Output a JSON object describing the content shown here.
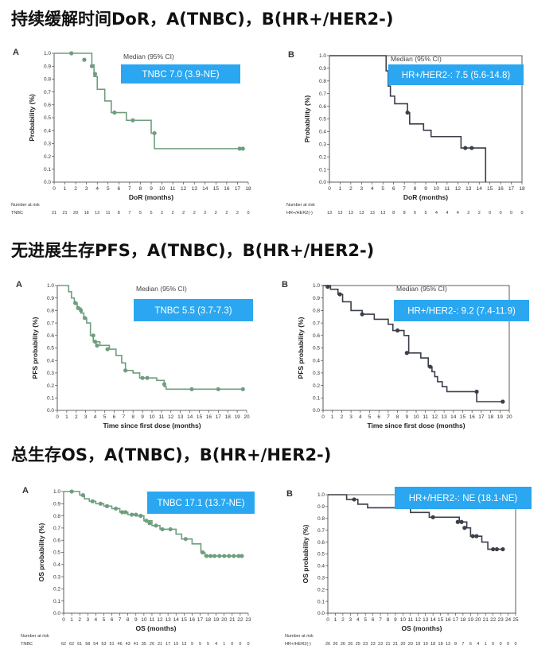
{
  "sections": {
    "dor_title": "持续缓解时间DoR，A(TNBC)，B(HR+/HER2-)",
    "pfs_title": "无进展生存PFS，A(TNBC)，B(HR+/HER2-)",
    "os_title": "总生存OS，A(TNBC)，B(HR+/HER2-)"
  },
  "colors": {
    "tnbc": "#6e9e7e",
    "hr": "#3a3f4a",
    "badge": "#2aa7f0"
  },
  "chart_data": [
    {
      "id": "dor_a",
      "type": "line",
      "panel": "A",
      "color_key": "tnbc",
      "median_label": "Median (95% CI)",
      "badge": "TNBC 7.0 (3.9-NE)",
      "ylabel": "Probability (%)",
      "xlabel": "DoR (months)",
      "xlim": [
        0,
        18
      ],
      "xstep": 1,
      "ylim": [
        0,
        1
      ],
      "steps": [
        [
          0,
          1.0
        ],
        [
          3.5,
          0.91
        ],
        [
          3.7,
          0.82
        ],
        [
          4.0,
          0.72
        ],
        [
          4.7,
          0.63
        ],
        [
          5.3,
          0.54
        ],
        [
          6.7,
          0.48
        ],
        [
          9.0,
          0.38
        ],
        [
          9.3,
          0.26
        ],
        [
          17.5,
          0.26
        ]
      ],
      "censors": [
        [
          1.6,
          1.0
        ],
        [
          2.8,
          0.95
        ],
        [
          3.5,
          0.9
        ],
        [
          3.8,
          0.84
        ],
        [
          5.6,
          0.54
        ],
        [
          7.3,
          0.48
        ],
        [
          9.3,
          0.38
        ],
        [
          17.2,
          0.26
        ],
        [
          17.5,
          0.26
        ]
      ],
      "risk_title": "Number at risk",
      "risk_rows": [
        {
          "label": "TNBC",
          "values": [
            "21",
            "21",
            "20",
            "18",
            "12",
            "11",
            "8",
            "7",
            "5",
            "5",
            "2",
            "2",
            "2",
            "2",
            "2",
            "2",
            "2",
            "2",
            "0"
          ]
        }
      ]
    },
    {
      "id": "dor_b",
      "type": "line",
      "panel": "B",
      "color_key": "hr",
      "median_label": "Median (95% CI)",
      "badge": "HR+/HER2-: 7.5 (5.6-14.8)",
      "ylabel": "Probability (%)",
      "xlabel": "DoR (months)",
      "xlim": [
        0,
        18
      ],
      "xstep": 1,
      "ylim": [
        0,
        1
      ],
      "steps": [
        [
          0,
          1.0
        ],
        [
          5.3,
          0.88
        ],
        [
          5.5,
          0.76
        ],
        [
          5.7,
          0.68
        ],
        [
          6.1,
          0.62
        ],
        [
          7.3,
          0.55
        ],
        [
          7.5,
          0.46
        ],
        [
          8.8,
          0.41
        ],
        [
          9.5,
          0.36
        ],
        [
          12.3,
          0.27
        ],
        [
          14.5,
          0.27
        ],
        [
          14.6,
          0.0
        ]
      ],
      "censors": [
        [
          7.3,
          0.55
        ],
        [
          12.7,
          0.27
        ],
        [
          13.3,
          0.27
        ]
      ],
      "risk_title": "Number at risk",
      "risk_rows": [
        {
          "label": "HR+/HER2(-)",
          "values": [
            "13",
            "13",
            "13",
            "13",
            "13",
            "13",
            "8",
            "8",
            "6",
            "5",
            "4",
            "4",
            "4",
            "2",
            "2",
            "0",
            "0",
            "0",
            "0"
          ]
        }
      ]
    },
    {
      "id": "pfs_a",
      "type": "line",
      "panel": "A",
      "color_key": "tnbc",
      "median_label": "Median (95% CI)",
      "badge": "TNBC 5.5 (3.7-7.3)",
      "ylabel": "PFS probability (%)",
      "xlabel": "Time since first dose (months)",
      "xlim": [
        0,
        20
      ],
      "xstep": 1,
      "ylim": [
        0,
        1
      ],
      "steps": [
        [
          0,
          1.0
        ],
        [
          1.2,
          0.95
        ],
        [
          1.5,
          0.9
        ],
        [
          1.8,
          0.86
        ],
        [
          2.1,
          0.82
        ],
        [
          2.5,
          0.78
        ],
        [
          2.8,
          0.74
        ],
        [
          3.1,
          0.7
        ],
        [
          3.5,
          0.6
        ],
        [
          3.8,
          0.55
        ],
        [
          4.5,
          0.52
        ],
        [
          5.5,
          0.49
        ],
        [
          6.2,
          0.44
        ],
        [
          6.8,
          0.38
        ],
        [
          7.2,
          0.32
        ],
        [
          8.0,
          0.3
        ],
        [
          8.7,
          0.26
        ],
        [
          10.5,
          0.24
        ],
        [
          11.3,
          0.19
        ],
        [
          11.5,
          0.17
        ],
        [
          19.8,
          0.17
        ]
      ],
      "censors": [
        [
          1.9,
          0.86
        ],
        [
          2.2,
          0.82
        ],
        [
          2.5,
          0.8
        ],
        [
          2.9,
          0.74
        ],
        [
          3.8,
          0.6
        ],
        [
          4.0,
          0.55
        ],
        [
          4.2,
          0.52
        ],
        [
          5.3,
          0.49
        ],
        [
          7.2,
          0.32
        ],
        [
          9.0,
          0.26
        ],
        [
          9.5,
          0.26
        ],
        [
          11.3,
          0.21
        ],
        [
          14.2,
          0.17
        ],
        [
          17.0,
          0.17
        ],
        [
          19.6,
          0.17
        ]
      ],
      "risk_title": "",
      "risk_rows": []
    },
    {
      "id": "pfs_b",
      "type": "line",
      "panel": "B",
      "color_key": "hr",
      "median_label": "Median (95% CI)",
      "badge": "HR+/HER2-: 9.2 (7.4-11.9)",
      "ylabel": "PFS probability (%)",
      "xlabel": "Time since first dose (months)",
      "xlim": [
        0,
        20
      ],
      "xstep": 1,
      "ylim": [
        0,
        1
      ],
      "steps": [
        [
          0,
          1.0
        ],
        [
          0.8,
          0.97
        ],
        [
          1.6,
          0.93
        ],
        [
          2.1,
          0.87
        ],
        [
          3.0,
          0.8
        ],
        [
          4.2,
          0.77
        ],
        [
          5.5,
          0.73
        ],
        [
          7.0,
          0.69
        ],
        [
          7.5,
          0.64
        ],
        [
          8.7,
          0.6
        ],
        [
          9.2,
          0.46
        ],
        [
          10.5,
          0.42
        ],
        [
          11.3,
          0.35
        ],
        [
          11.7,
          0.31
        ],
        [
          12.0,
          0.27
        ],
        [
          12.3,
          0.23
        ],
        [
          12.8,
          0.19
        ],
        [
          13.3,
          0.15
        ],
        [
          16.5,
          0.07
        ],
        [
          19.5,
          0.07
        ]
      ],
      "censors": [
        [
          0.5,
          0.99
        ],
        [
          1.8,
          0.93
        ],
        [
          4.2,
          0.77
        ],
        [
          8.0,
          0.64
        ],
        [
          9.0,
          0.46
        ],
        [
          11.5,
          0.35
        ],
        [
          16.5,
          0.15
        ],
        [
          19.3,
          0.07
        ]
      ],
      "risk_title": "",
      "risk_rows": []
    },
    {
      "id": "os_a",
      "type": "line",
      "panel": "A",
      "color_key": "tnbc",
      "median_label": "",
      "badge": "TNBC 17.1 (13.7-NE)",
      "ylabel": "OS probability (%)",
      "xlabel": "OS (months)",
      "xlim": [
        0,
        23
      ],
      "xstep": 1,
      "ylim": [
        0,
        1
      ],
      "steps": [
        [
          0,
          1.0
        ],
        [
          2.0,
          0.97
        ],
        [
          2.6,
          0.94
        ],
        [
          3.2,
          0.92
        ],
        [
          4.0,
          0.9
        ],
        [
          5.0,
          0.88
        ],
        [
          6.0,
          0.86
        ],
        [
          7.0,
          0.83
        ],
        [
          8.0,
          0.81
        ],
        [
          9.2,
          0.8
        ],
        [
          10.0,
          0.76
        ],
        [
          11.0,
          0.72
        ],
        [
          12.0,
          0.69
        ],
        [
          14.0,
          0.65
        ],
        [
          14.7,
          0.61
        ],
        [
          16.0,
          0.57
        ],
        [
          17.1,
          0.5
        ],
        [
          17.6,
          0.47
        ],
        [
          22.2,
          0.47
        ]
      ],
      "censors": [
        [
          1.0,
          1.0
        ],
        [
          2.4,
          0.97
        ],
        [
          3.6,
          0.92
        ],
        [
          4.6,
          0.9
        ],
        [
          5.4,
          0.88
        ],
        [
          6.5,
          0.86
        ],
        [
          7.3,
          0.83
        ],
        [
          7.7,
          0.83
        ],
        [
          8.5,
          0.81
        ],
        [
          9.0,
          0.81
        ],
        [
          9.6,
          0.8
        ],
        [
          10.3,
          0.76
        ],
        [
          10.7,
          0.74
        ],
        [
          11.5,
          0.72
        ],
        [
          12.3,
          0.69
        ],
        [
          13.3,
          0.69
        ],
        [
          15.2,
          0.61
        ],
        [
          17.3,
          0.5
        ],
        [
          17.8,
          0.47
        ],
        [
          18.3,
          0.47
        ],
        [
          18.8,
          0.47
        ],
        [
          19.4,
          0.47
        ],
        [
          20.0,
          0.47
        ],
        [
          20.6,
          0.47
        ],
        [
          21.2,
          0.47
        ],
        [
          21.8,
          0.47
        ],
        [
          22.2,
          0.47
        ]
      ],
      "risk_title": "Number at risk",
      "risk_rows": [
        {
          "label": "TNBC",
          "values": [
            "62",
            "62",
            "61",
            "58",
            "54",
            "53",
            "51",
            "46",
            "43",
            "41",
            "35",
            "26",
            "21",
            "17",
            "15",
            "13",
            "9",
            "5",
            "5",
            "4",
            "1",
            "0",
            "0",
            "0"
          ]
        }
      ]
    },
    {
      "id": "os_b",
      "type": "line",
      "panel": "B",
      "color_key": "hr",
      "median_label": "",
      "badge": "HR+/HER2-: NE (18.1-NE)",
      "ylabel": "OS probability (%)",
      "xlabel": "OS (months)",
      "xlim": [
        0,
        25
      ],
      "xstep": 1,
      "ylim": [
        0,
        1
      ],
      "steps": [
        [
          0,
          1.0
        ],
        [
          2.5,
          0.96
        ],
        [
          4.0,
          0.92
        ],
        [
          5.3,
          0.89
        ],
        [
          11.0,
          0.85
        ],
        [
          13.5,
          0.81
        ],
        [
          17.5,
          0.77
        ],
        [
          18.5,
          0.72
        ],
        [
          19.0,
          0.65
        ],
        [
          20.5,
          0.6
        ],
        [
          21.3,
          0.54
        ],
        [
          23.5,
          0.54
        ]
      ],
      "censors": [
        [
          3.5,
          0.96
        ],
        [
          14.0,
          0.81
        ],
        [
          17.3,
          0.77
        ],
        [
          17.8,
          0.77
        ],
        [
          18.2,
          0.72
        ],
        [
          19.3,
          0.65
        ],
        [
          19.8,
          0.65
        ],
        [
          22.0,
          0.54
        ],
        [
          22.5,
          0.54
        ],
        [
          23.3,
          0.54
        ]
      ],
      "risk_title": "Number at risk",
      "risk_rows": [
        {
          "label": "HR+/HER2(-)",
          "values": [
            "26",
            "26",
            "26",
            "26",
            "25",
            "23",
            "23",
            "23",
            "21",
            "21",
            "20",
            "20",
            "19",
            "19",
            "18",
            "18",
            "13",
            "8",
            "7",
            "6",
            "4",
            "1",
            "0",
            "0",
            "0",
            "0"
          ]
        }
      ]
    }
  ]
}
